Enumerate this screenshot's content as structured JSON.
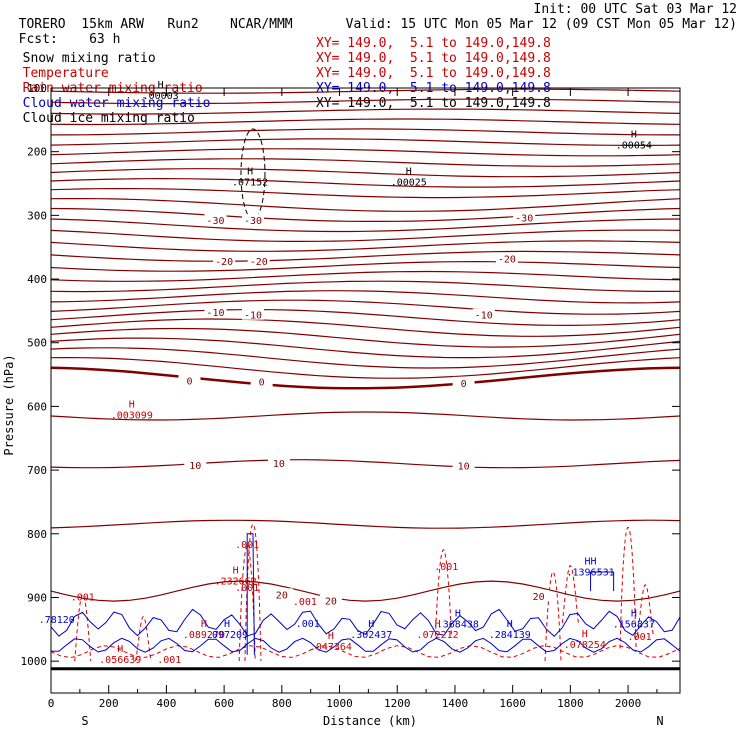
{
  "header": {
    "model": "TORERO",
    "resolution": "15km ARW",
    "run": "Run2",
    "org": "NCAR/MMM",
    "init": "Init: 00 UTC Sat 03 Mar 12",
    "fcst_label": "Fcst:",
    "fcst_value": "63 h",
    "valid": "Valid: 15 UTC Mon 05 Mar 12 (09 CST Mon 05 Mar 12)"
  },
  "legend": [
    {
      "name": "Snow mixing ratio",
      "color": "#000000",
      "xy": ""
    },
    {
      "name": "Temperature",
      "color": "#cc0000",
      "xy": "XY= 149.0,  5.1 to 149.0,149.8"
    },
    {
      "name": "Rain water mixing ratio",
      "color": "#cc0000",
      "xy": "XY= 149.0,  5.1 to 149.0,149.8"
    },
    {
      "name": "Cloud water mixing ratio",
      "color": "#0000cc",
      "xy": "XY= 149.0,  5.1 to 149.0,149.8"
    },
    {
      "name": "Cloud ice mixing ratio",
      "color": "#000000",
      "xy": "XY= 149.0,  5.1 to 149.0,149.8"
    }
  ],
  "legend_xy_first": "XY= 149.0,  5.1 to 149.0,149.8",
  "chart_data": {
    "type": "contour",
    "xlabel": "Distance (km)",
    "ylabel": "Pressure (hPa)",
    "xlim": [
      0,
      2180
    ],
    "ylim": [
      1050,
      100
    ],
    "x_ticks": [
      0,
      200,
      400,
      600,
      800,
      1000,
      1200,
      1400,
      1600,
      1800,
      2000
    ],
    "y_ticks": [
      100,
      200,
      300,
      400,
      500,
      600,
      700,
      800,
      900,
      1000
    ],
    "x_ends": {
      "left": "S",
      "right": "N"
    },
    "temperature_labels": [
      {
        "text": "-30",
        "x": 570,
        "p": 307
      },
      {
        "text": "-30",
        "x": 700,
        "p": 307
      },
      {
        "text": "-30",
        "x": 1640,
        "p": 303
      },
      {
        "text": "-20",
        "x": 600,
        "p": 372
      },
      {
        "text": "-20",
        "x": 720,
        "p": 372
      },
      {
        "text": "-20",
        "x": 1580,
        "p": 368
      },
      {
        "text": "-10",
        "x": 570,
        "p": 452
      },
      {
        "text": "-10",
        "x": 700,
        "p": 456
      },
      {
        "text": "-10",
        "x": 1500,
        "p": 456
      },
      {
        "text": "0",
        "x": 480,
        "p": 559
      },
      {
        "text": "0",
        "x": 730,
        "p": 561
      },
      {
        "text": "0",
        "x": 1430,
        "p": 563
      },
      {
        "text": "10",
        "x": 500,
        "p": 692
      },
      {
        "text": "10",
        "x": 790,
        "p": 689
      },
      {
        "text": "10",
        "x": 1430,
        "p": 693
      },
      {
        "text": "20",
        "x": 800,
        "p": 895
      },
      {
        "text": "20",
        "x": 970,
        "p": 905
      },
      {
        "text": "20",
        "x": 1690,
        "p": 898
      }
    ],
    "highs": [
      {
        "label": "H",
        "value": ".00003",
        "x": 380,
        "p": 100,
        "color": "#000000"
      },
      {
        "label": "H",
        "value": ".07152",
        "x": 690,
        "p": 236,
        "color": "#000000"
      },
      {
        "label": "H",
        "value": ".00025",
        "x": 1240,
        "p": 236,
        "color": "#000000"
      },
      {
        "label": "H",
        "value": ".00054",
        "x": 2020,
        "p": 178,
        "color": "#000000"
      },
      {
        "label": "H",
        "value": ".003099",
        "x": 280,
        "p": 602,
        "color": "#cc0000"
      },
      {
        "label": ".001",
        "value": "",
        "x": 680,
        "p": 822,
        "color": "#cc0000"
      },
      {
        "label": "H",
        "value": ".232662",
        "x": 640,
        "p": 862,
        "color": "#cc0000"
      },
      {
        "label": ".001",
        "value": "",
        "x": 680,
        "p": 890,
        "color": "#cc0000"
      },
      {
        "label": ".001",
        "value": "",
        "x": 110,
        "p": 905,
        "color": "#cc0000"
      },
      {
        "label": ".001",
        "value": "",
        "x": 880,
        "p": 912,
        "color": "#cc0000"
      },
      {
        "label": ".001",
        "value": "",
        "x": 1370,
        "p": 857,
        "color": "#cc0000"
      },
      {
        "label": ".001",
        "value": "",
        "x": 2040,
        "p": 967,
        "color": "#cc0000"
      },
      {
        "label": ".001",
        "value": "",
        "x": 410,
        "p": 1003,
        "color": "#cc0000"
      },
      {
        "label": ".78120",
        "value": "",
        "x": 20,
        "p": 940,
        "color": "#0000cc"
      },
      {
        "label": "H",
        "value": ".089270",
        "x": 530,
        "p": 946,
        "color": "#cc0000"
      },
      {
        "label": "H",
        "value": ".097209",
        "x": 610,
        "p": 946,
        "color": "#0000cc"
      },
      {
        "label": "H",
        "value": ".056639",
        "x": 240,
        "p": 986,
        "color": "#cc0000"
      },
      {
        "label": ".001",
        "value": "",
        "x": 890,
        "p": 946,
        "color": "#0000cc"
      },
      {
        "label": "H",
        "value": ".047364",
        "x": 970,
        "p": 965,
        "color": "#cc0000"
      },
      {
        "label": "H",
        "value": ".302437",
        "x": 1110,
        "p": 946,
        "color": "#0000cc"
      },
      {
        "label": "H",
        "value": ".368438",
        "x": 1410,
        "p": 930,
        "color": "#0000cc"
      },
      {
        "label": "H",
        "value": ".072212",
        "x": 1340,
        "p": 946,
        "color": "#cc0000"
      },
      {
        "label": "H",
        "value": ".284139",
        "x": 1590,
        "p": 946,
        "color": "#0000cc"
      },
      {
        "label": "H",
        "value": ".078254",
        "x": 1850,
        "p": 962,
        "color": "#cc0000"
      },
      {
        "label": "HH",
        "value": ".1396531",
        "x": 1870,
        "p": 848,
        "color": "#0000cc"
      },
      {
        "label": "H",
        "value": ".156837",
        "x": 2020,
        "p": 930,
        "color": "#0000cc"
      }
    ]
  }
}
